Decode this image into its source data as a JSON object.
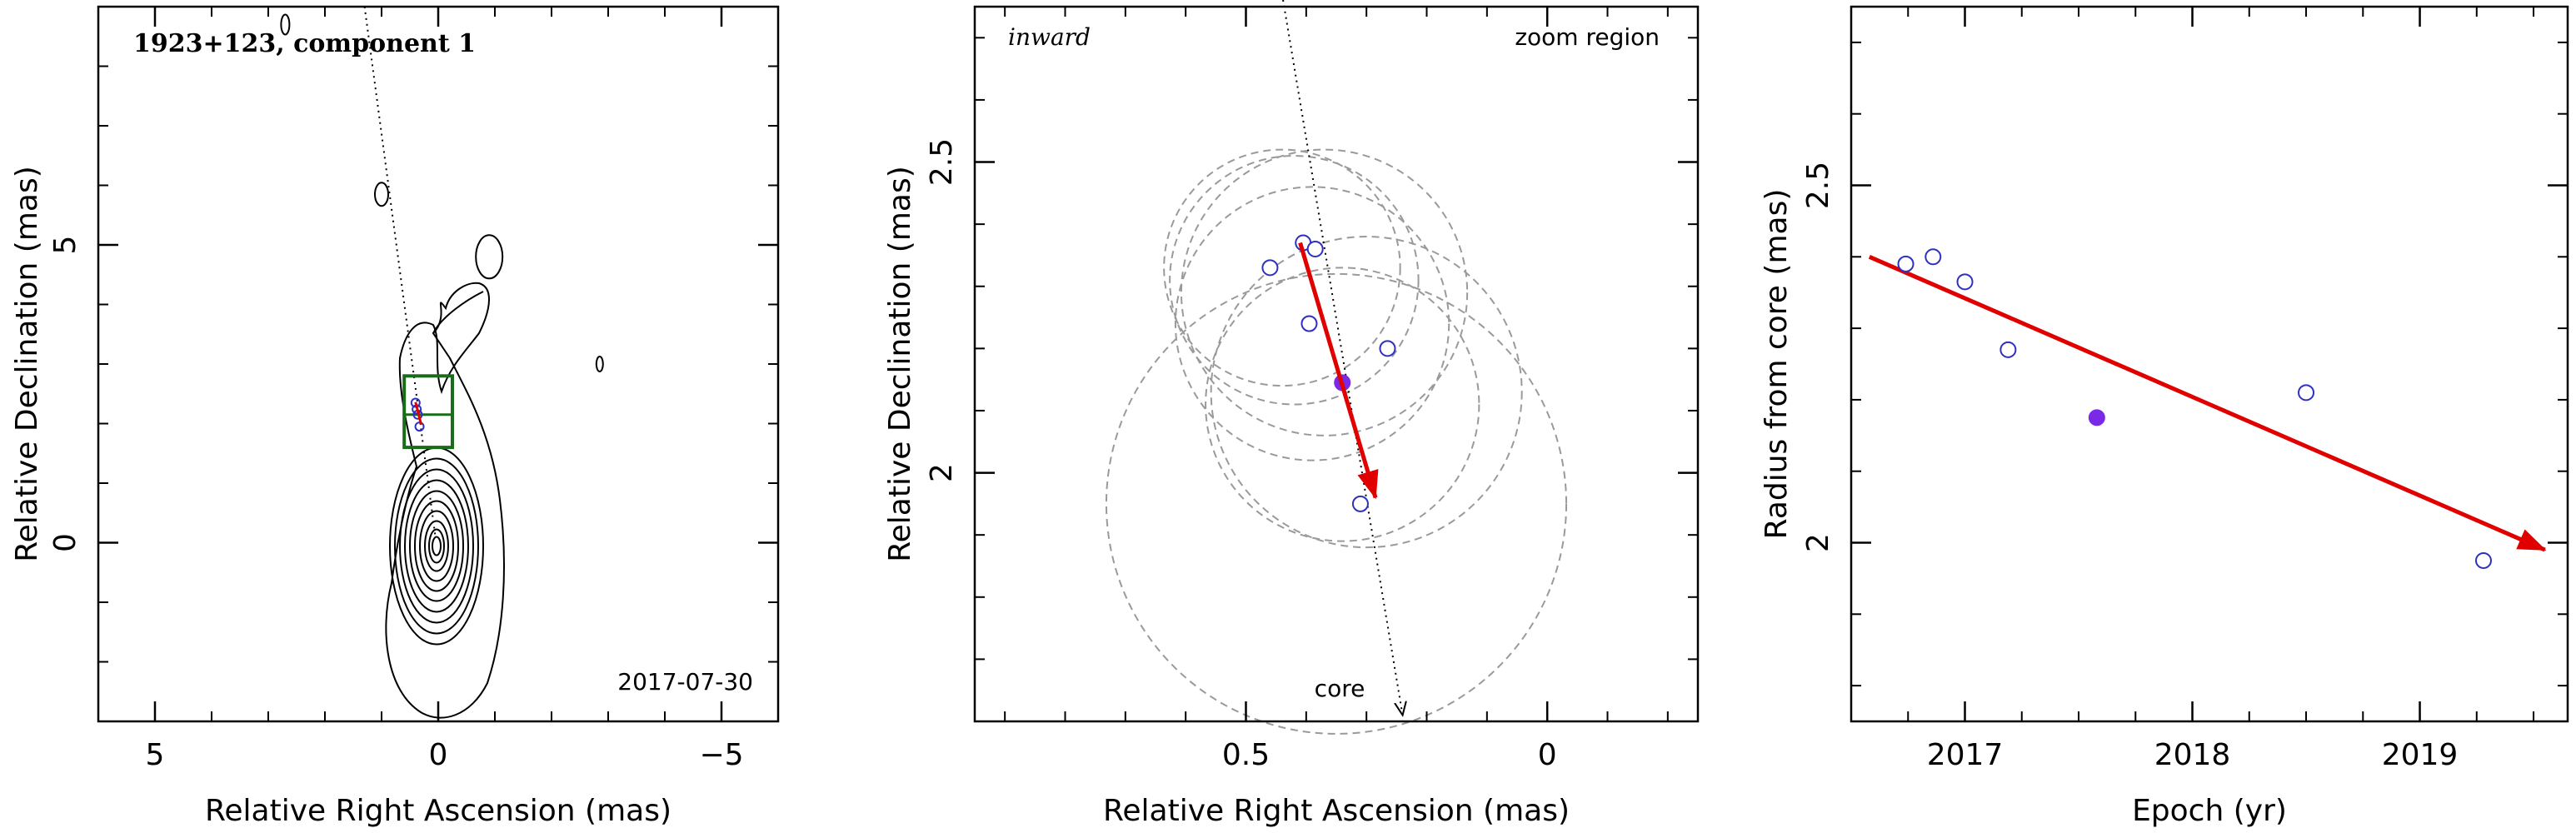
{
  "chart_data": [
    {
      "type": "contour",
      "title": "1923+123, component 1",
      "date_label": "2017-07-30",
      "xlabel": "Relative Right Ascension (mas)",
      "ylabel": "Relative Declination (mas)",
      "xlim": [
        6,
        -6
      ],
      "ylim": [
        -3,
        9
      ],
      "xticks": [
        5,
        0,
        -5
      ],
      "yticks": [
        0,
        5
      ],
      "x_minor_step": 1,
      "y_minor_step": 1,
      "xtick_labels": [
        "5",
        "0",
        "−5"
      ],
      "ytick_labels": [
        "0",
        "5"
      ],
      "core_position": [
        0,
        0
      ],
      "zoom_box": {
        "ra_range": [
          -0.25,
          0.6
        ],
        "dec_range": [
          1.6,
          2.8
        ]
      },
      "direction_line": {
        "from": [
          1.3,
          9.0
        ],
        "to": [
          0.05,
          0.1
        ]
      },
      "component_markers": [
        {
          "ra": 0.4,
          "dec": 2.35
        },
        {
          "ra": 0.38,
          "dec": 2.24
        },
        {
          "ra": 0.36,
          "dec": 2.15
        },
        {
          "ra": 0.33,
          "dec": 1.95
        }
      ],
      "colors": {
        "box": "#1a6b1a",
        "contour": "#000000",
        "marker": "#3030c0",
        "arrow": "#e00000"
      }
    },
    {
      "type": "scatter",
      "title": "inward",
      "corner_label": "zoom region",
      "core_label": "core",
      "xlabel": "Relative Right Ascension (mas)",
      "ylabel": "Relative Declination (mas)",
      "xlim": [
        0.95,
        -0.25
      ],
      "ylim": [
        1.6,
        2.75
      ],
      "xticks": [
        0.5,
        0
      ],
      "yticks": [
        2,
        2.5
      ],
      "x_minor_step": 0.1,
      "y_minor_step": 0.1,
      "xtick_labels": [
        "0.5",
        "0"
      ],
      "ytick_labels": [
        "2",
        "2.5"
      ],
      "points": [
        {
          "ra": 0.405,
          "dec": 2.37,
          "filled": false
        },
        {
          "ra": 0.385,
          "dec": 2.36,
          "filled": false
        },
        {
          "ra": 0.46,
          "dec": 2.33,
          "filled": false
        },
        {
          "ra": 0.395,
          "dec": 2.24,
          "filled": false
        },
        {
          "ra": 0.265,
          "dec": 2.2,
          "filled": false
        },
        {
          "ra": 0.34,
          "dec": 2.145,
          "filled": true
        },
        {
          "ra": 0.31,
          "dec": 1.95,
          "filled": false
        }
      ],
      "error_circles": [
        {
          "ra": 0.44,
          "dec": 2.33,
          "r": 0.19
        },
        {
          "ra": 0.42,
          "dec": 2.31,
          "r": 0.2
        },
        {
          "ra": 0.37,
          "dec": 2.29,
          "r": 0.23
        },
        {
          "ra": 0.39,
          "dec": 2.24,
          "r": 0.22
        },
        {
          "ra": 0.3,
          "dec": 2.13,
          "r": 0.25
        },
        {
          "ra": 0.34,
          "dec": 2.11,
          "r": 0.22
        },
        {
          "ra": 0.35,
          "dec": 1.95,
          "r": 0.37
        }
      ],
      "fit_arrow": {
        "from": [
          0.41,
          2.37
        ],
        "to": [
          0.285,
          1.96
        ]
      },
      "direction_line": {
        "from": [
          0.44,
          2.77
        ],
        "to": [
          0.24,
          1.61
        ]
      },
      "colors": {
        "marker": "#3030c0",
        "filled": "#7a2ae6",
        "arrow": "#e00000",
        "circle": "#9a9a9a"
      }
    },
    {
      "type": "scatter",
      "xlabel": "Epoch (yr)",
      "ylabel": "Radius from core (mas)",
      "xlim": [
        2016.5,
        2019.65
      ],
      "ylim": [
        1.75,
        2.75
      ],
      "xticks": [
        2017,
        2018,
        2019
      ],
      "yticks": [
        2,
        2.5
      ],
      "x_minor_step": 0.25,
      "y_minor_step": 0.1,
      "xtick_labels": [
        "2017",
        "2018",
        "2019"
      ],
      "ytick_labels": [
        "2",
        "2.5"
      ],
      "points": [
        {
          "x": 2016.74,
          "y": 2.39,
          "filled": false
        },
        {
          "x": 2016.86,
          "y": 2.4,
          "filled": false
        },
        {
          "x": 2017.0,
          "y": 2.365,
          "filled": false
        },
        {
          "x": 2017.19,
          "y": 2.27,
          "filled": false
        },
        {
          "x": 2017.58,
          "y": 2.175,
          "filled": true
        },
        {
          "x": 2018.5,
          "y": 2.21,
          "filled": false
        },
        {
          "x": 2019.28,
          "y": 1.975,
          "filled": false
        }
      ],
      "fit_arrow": {
        "from": [
          2016.58,
          2.4
        ],
        "to": [
          2019.55,
          1.99
        ]
      },
      "colors": {
        "marker": "#3030c0",
        "filled": "#7a2ae6",
        "arrow": "#e00000"
      }
    }
  ]
}
